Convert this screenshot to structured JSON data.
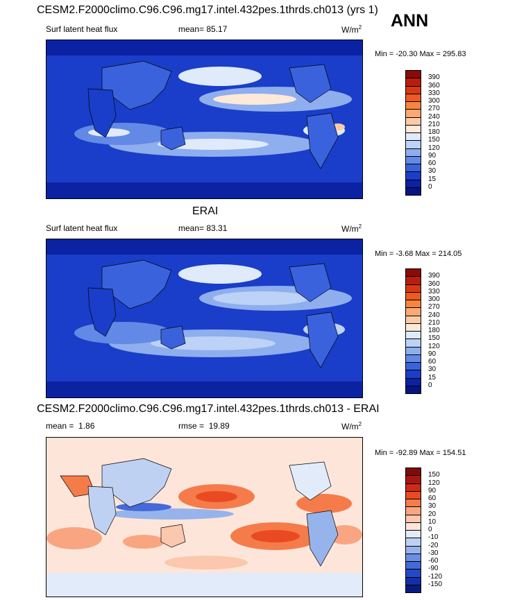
{
  "header": {
    "title": "CESM2.F2000climo.C96.C96.mg17.intel.432pes.1thrds.ch013 (yrs 1)",
    "season": "ANN"
  },
  "panels": [
    {
      "subtitle": "",
      "variable": "Surf latent heat flux",
      "mean_label": "mean=",
      "mean_value": "85.17",
      "units": "W/m",
      "units_exp": "2",
      "minmax": "Min = -20.30 Max = 295.83",
      "colorbar": {
        "labels": [
          "390",
          "360",
          "330",
          "300",
          "270",
          "240",
          "210",
          "180",
          "150",
          "120",
          "90",
          "60",
          "30",
          "15",
          "0"
        ],
        "colors": [
          "#8b0a0a",
          "#b81e0e",
          "#d73a12",
          "#ee5a1f",
          "#f7853f",
          "#fba872",
          "#fdcaa8",
          "#fde9d8",
          "#dfeafb",
          "#bcd2f6",
          "#8faeee",
          "#6389e6",
          "#3a62dc",
          "#1a3ec9",
          "#0b22a3",
          "#061581"
        ]
      }
    },
    {
      "subtitle": "ERAI",
      "variable": "Surf latent heat flux",
      "mean_label": "mean=",
      "mean_value": "83.31",
      "units": "W/m",
      "units_exp": "2",
      "minmax": "Min =  -3.68 Max = 214.05",
      "colorbar": {
        "labels": [
          "390",
          "360",
          "330",
          "300",
          "270",
          "240",
          "210",
          "180",
          "150",
          "120",
          "90",
          "60",
          "30",
          "15",
          "0"
        ],
        "colors": [
          "#8b0a0a",
          "#b81e0e",
          "#d73a12",
          "#ee5a1f",
          "#f7853f",
          "#fba872",
          "#fdcaa8",
          "#fde9d8",
          "#dfeafb",
          "#bcd2f6",
          "#8faeee",
          "#6389e6",
          "#3a62dc",
          "#1a3ec9",
          "#0b22a3",
          "#061581"
        ]
      }
    },
    {
      "subtitle": "CESM2.F2000climo.C96.C96.mg17.intel.432pes.1thrds.ch013 - ERAI",
      "variable": "",
      "mean_label": "mean =",
      "mean_value": "1.86",
      "rmse_label": "rmse =",
      "rmse_value": "19.89",
      "units": "W/m",
      "units_exp": "2",
      "minmax": "Min = -92.89 Max = 154.51",
      "colorbar": {
        "labels": [
          "150",
          "120",
          "90",
          "60",
          "30",
          "20",
          "10",
          "0",
          "-10",
          "-20",
          "-30",
          "-60",
          "-90",
          "-120",
          "-150"
        ],
        "colors": [
          "#7f0a0a",
          "#a8170f",
          "#cf2b14",
          "#ea4a22",
          "#f57c4a",
          "#f9a582",
          "#fbc7ad",
          "#fde6d9",
          "#e1ebfa",
          "#bfd1f3",
          "#97b3ec",
          "#6b8ee2",
          "#4469d8",
          "#2647c7",
          "#1330a6",
          "#081c80"
        ]
      }
    }
  ],
  "chart_data": [
    {
      "type": "heatmap",
      "title": "CESM2.F2000climo.C96.C96.mg17.intel.432pes.1thrds.ch013 (yrs 1)",
      "variable": "Surf latent heat flux",
      "mean": 85.17,
      "units": "W/m2",
      "min": -20.3,
      "max": 295.83,
      "levels": [
        0,
        15,
        30,
        60,
        90,
        120,
        150,
        180,
        210,
        240,
        270,
        300,
        330,
        360,
        390
      ]
    },
    {
      "type": "heatmap",
      "title": "ERAI",
      "variable": "Surf latent heat flux",
      "mean": 83.31,
      "units": "W/m2",
      "min": -3.68,
      "max": 214.05,
      "levels": [
        0,
        15,
        30,
        60,
        90,
        120,
        150,
        180,
        210,
        240,
        270,
        300,
        330,
        360,
        390
      ]
    },
    {
      "type": "heatmap",
      "title": "CESM2.F2000climo.C96.C96.mg17.intel.432pes.1thrds.ch013 - ERAI",
      "mean": 1.86,
      "rmse": 19.89,
      "units": "W/m2",
      "min": -92.89,
      "max": 154.51,
      "levels": [
        -150,
        -120,
        -90,
        -60,
        -30,
        -20,
        -10,
        0,
        10,
        20,
        30,
        60,
        90,
        120,
        150
      ]
    }
  ]
}
